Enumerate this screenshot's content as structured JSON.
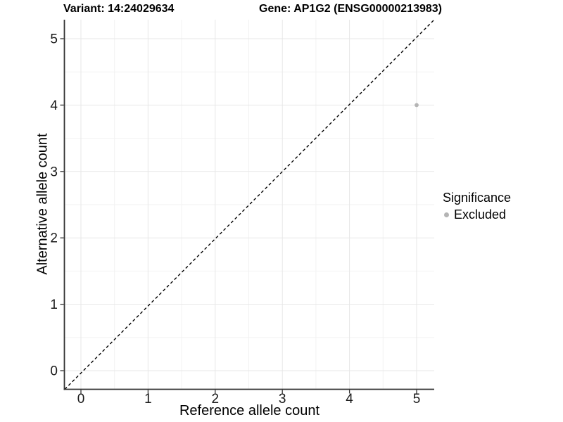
{
  "chart_data": {
    "type": "scatter",
    "title_left": "Variant: 14:24029634",
    "title_right": "Gene: AP1G2 (ENSG00000213983)",
    "xlabel": "Reference allele count",
    "ylabel": "Alternative allele count",
    "x_ticks": [
      0,
      1,
      2,
      3,
      4,
      5
    ],
    "y_ticks": [
      0,
      1,
      2,
      3,
      4,
      5
    ],
    "xlim": [
      -0.25,
      5.25
    ],
    "ylim": [
      -0.28,
      5.3
    ],
    "grid": "major-and-minor",
    "points": [
      {
        "x": 5,
        "y": 4,
        "significance": "Excluded"
      }
    ],
    "reference_line": {
      "type": "identity",
      "slope": 1,
      "intercept": 0,
      "style": "dashed",
      "color": "#000000"
    },
    "legend": {
      "title": "Significance",
      "position": "right",
      "entries": [
        {
          "label": "Excluded",
          "color": "#b4b4b4"
        }
      ]
    },
    "colors": {
      "point": "#b4b4b4",
      "grid_major": "#e7e7e7",
      "grid_minor": "#f2f2f2",
      "axis_line": "#333333",
      "tick_text": "#1a1a1a"
    }
  }
}
